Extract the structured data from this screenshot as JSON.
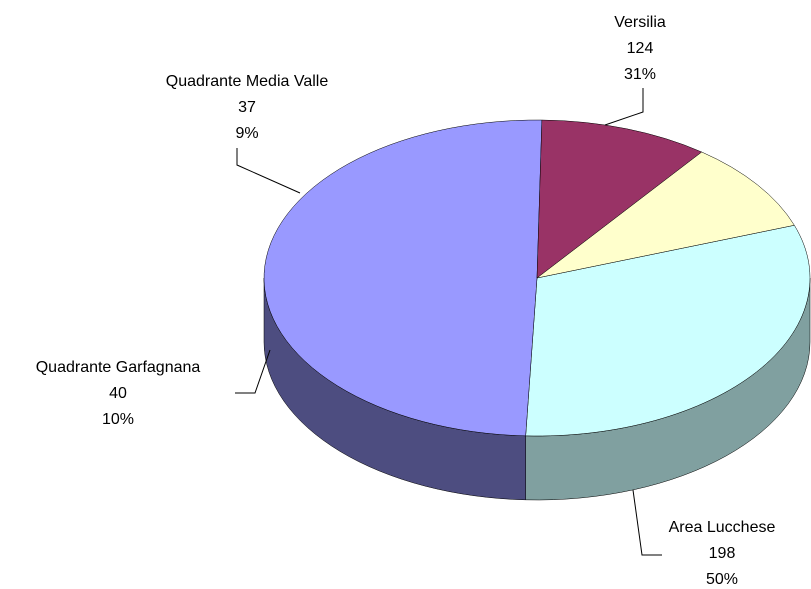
{
  "chart_data": {
    "type": "pie",
    "categories": [
      "Versilia",
      "Area Lucchese",
      "Quadrante Garfagnana",
      "Quadrante Media Valle"
    ],
    "values": [
      124,
      198,
      40,
      37
    ],
    "percent_labels": [
      "31%",
      "50%",
      "10%",
      "9%"
    ],
    "colors": [
      "#ccffff",
      "#9999ff",
      "#993366",
      "#ffffcc"
    ],
    "side_colors": [
      "#80a0a0",
      "#4d4d80",
      "#4d1a33",
      "#808066"
    ]
  }
}
